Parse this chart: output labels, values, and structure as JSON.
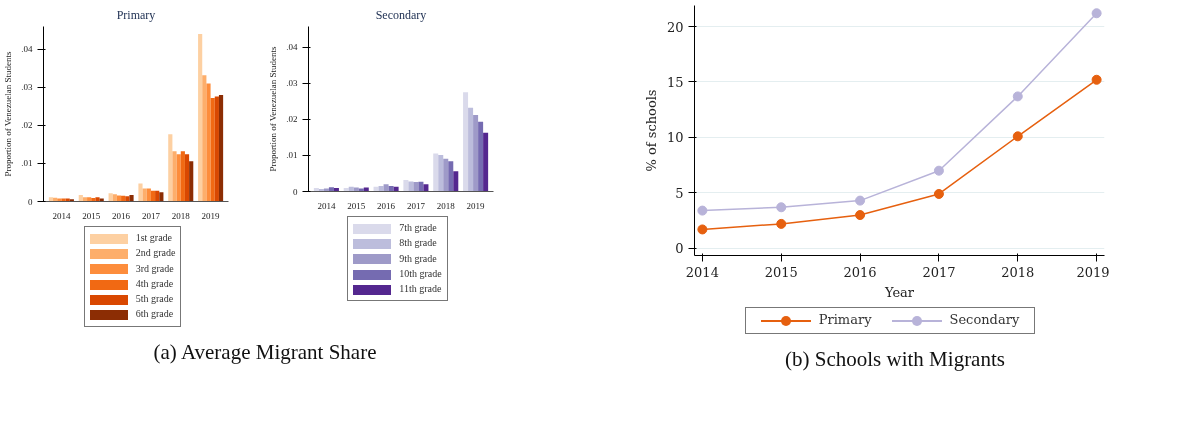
{
  "chart_data": [
    {
      "type": "bar",
      "title": "Primary",
      "ylabel": "Proportion of Venezuelan Students",
      "categories": [
        "2014",
        "2015",
        "2016",
        "2017",
        "2018",
        "2019"
      ],
      "ylim": [
        0,
        0.046
      ],
      "yticks": [
        0,
        {
          "value": 0.01,
          "label": ".01"
        },
        {
          "value": 0.02,
          "label": ".02"
        },
        {
          "value": 0.03,
          "label": ".03"
        },
        {
          "value": 0.04,
          "label": ".04"
        }
      ],
      "grid": false,
      "legend": "bottom",
      "annotations": [
        "(a) Average Migrant Share"
      ],
      "series": [
        {
          "name": "1st grade",
          "color": "#fdd0a2",
          "values": [
            0.0011,
            0.0017,
            0.0022,
            0.0047,
            0.0177,
            0.044
          ]
        },
        {
          "name": "2nd grade",
          "color": "#fdae6b",
          "values": [
            0.001,
            0.0011,
            0.0019,
            0.0034,
            0.0132,
            0.0332
          ]
        },
        {
          "name": "3rd grade",
          "color": "#fd8d3c",
          "values": [
            0.0008,
            0.0011,
            0.0016,
            0.0034,
            0.0124,
            0.031
          ]
        },
        {
          "name": "4th grade",
          "color": "#f16913",
          "values": [
            0.0008,
            0.0009,
            0.0015,
            0.0028,
            0.0132,
            0.0272
          ]
        },
        {
          "name": "5th grade",
          "color": "#d94801",
          "values": [
            0.0008,
            0.0011,
            0.0014,
            0.0028,
            0.0124,
            0.0276
          ]
        },
        {
          "name": "6th grade",
          "color": "#8c2d04",
          "values": [
            0.0006,
            0.0008,
            0.0017,
            0.0024,
            0.0106,
            0.028
          ]
        }
      ]
    },
    {
      "type": "bar",
      "title": "Secondary",
      "ylabel": "Proportion of Venezuelan Students",
      "categories": [
        "2014",
        "2015",
        "2016",
        "2017",
        "2018",
        "2019"
      ],
      "ylim": [
        0,
        0.0457
      ],
      "yticks": [
        0,
        {
          "value": 0.01,
          "label": ".01"
        },
        {
          "value": 0.02,
          "label": ".02"
        },
        {
          "value": 0.03,
          "label": ".03"
        },
        {
          "value": 0.04,
          "label": ".04"
        }
      ],
      "grid": false,
      "legend": "bottom",
      "series": [
        {
          "name": "7th grade",
          "color": "#dadaeb",
          "values": [
            0.001,
            0.001,
            0.0013,
            0.0032,
            0.0105,
            0.0275
          ]
        },
        {
          "name": "8th grade",
          "color": "#bcbddc",
          "values": [
            0.0007,
            0.0013,
            0.0015,
            0.0028,
            0.0101,
            0.0232
          ]
        },
        {
          "name": "9th grade",
          "color": "#9e9ac8",
          "values": [
            0.0008,
            0.0011,
            0.002,
            0.0026,
            0.0091,
            0.0212
          ]
        },
        {
          "name": "10th grade",
          "color": "#756bb1",
          "values": [
            0.0012,
            0.0008,
            0.0015,
            0.0027,
            0.0084,
            0.0193
          ]
        },
        {
          "name": "11th grade",
          "color": "#54278f",
          "values": [
            0.001,
            0.0011,
            0.0013,
            0.002,
            0.0056,
            0.0163
          ]
        }
      ]
    },
    {
      "type": "line",
      "xlabel": "Year",
      "ylabel": "% of schools",
      "x": [
        2014,
        2015,
        2016,
        2017,
        2018,
        2019
      ],
      "xlim": [
        2013.9,
        2019.1
      ],
      "xticks": [
        2014,
        2015,
        2016,
        2017,
        2018,
        2019
      ],
      "ylim": [
        -0.65,
        21.9
      ],
      "yticks": [
        0,
        5,
        10,
        15,
        20
      ],
      "grid": "y",
      "legend": "bottom",
      "marker": "circle",
      "annotations": [
        "(b) Schools with Migrants"
      ],
      "series": [
        {
          "name": "Primary",
          "color": "#e6600f",
          "values": [
            1.7,
            2.2,
            3.0,
            4.9,
            10.1,
            15.2
          ]
        },
        {
          "name": "Secondary",
          "color": "#b8b3d9",
          "values": [
            3.4,
            3.7,
            4.3,
            7.0,
            13.7,
            21.2
          ]
        }
      ]
    }
  ]
}
